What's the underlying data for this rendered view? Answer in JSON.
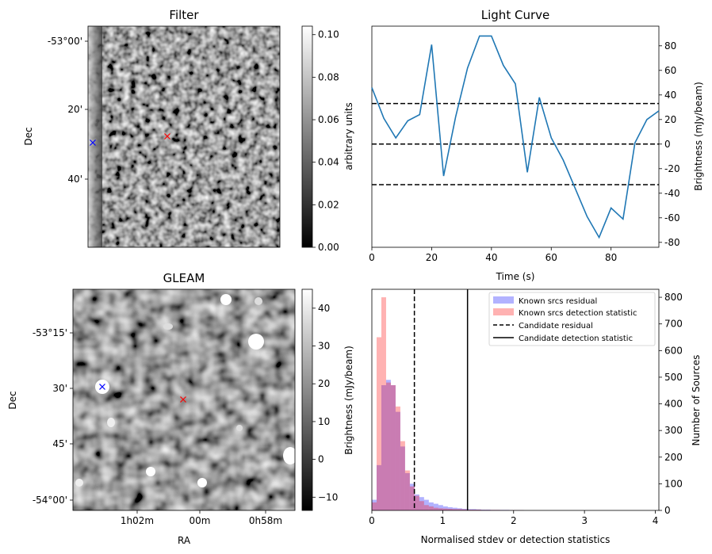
{
  "chart_data": [
    {
      "type": "image",
      "title": "Filter",
      "xlabel": "",
      "ylabel": "Dec",
      "yticks": [
        "-53°00'",
        "20'",
        "40'"
      ],
      "colorbar": {
        "label": "arbitrary units",
        "ticks": [
          "0.00",
          "0.02",
          "0.04",
          "0.06",
          "0.08",
          "0.10"
        ],
        "range": [
          0,
          0.104
        ]
      },
      "markers": [
        {
          "symbol": "x",
          "color": "#0000ff"
        },
        {
          "symbol": "x",
          "color": "#ff0000"
        }
      ]
    },
    {
      "type": "line",
      "title": "Light Curve",
      "xlabel": "Time (s)",
      "ylabel": "Brightness (mJy/beam)",
      "xlim": [
        0,
        96
      ],
      "ylim": [
        -84,
        96
      ],
      "xticks": [
        "0",
        "20",
        "40",
        "60",
        "80"
      ],
      "yticks": [
        "-80",
        "-60",
        "-40",
        "-20",
        "0",
        "20",
        "40",
        "60",
        "80"
      ],
      "x": [
        0,
        4,
        8,
        12,
        16,
        20,
        24,
        28,
        32,
        36,
        40,
        44,
        48,
        52,
        56,
        60,
        64,
        68,
        72,
        76,
        80,
        84,
        88,
        92,
        96
      ],
      "values": [
        46,
        21,
        5,
        19,
        24,
        81,
        -26,
        22,
        62,
        88,
        88,
        64,
        49,
        -23,
        38,
        5,
        -13,
        -36,
        -59,
        -76,
        -52,
        -61,
        1,
        20,
        27
      ],
      "hlines": [
        {
          "y": 33,
          "style": "dashed",
          "color": "#000000"
        },
        {
          "y": 0,
          "style": "dashed",
          "color": "#000000"
        },
        {
          "y": -33,
          "style": "dashed",
          "color": "#000000"
        }
      ],
      "color": "#1f77b4"
    },
    {
      "type": "image",
      "title": "GLEAM",
      "xlabel": "RA",
      "ylabel": "Dec",
      "xticks": [
        "1h02m",
        "00m",
        "0h58m"
      ],
      "yticks": [
        "-53°15'",
        "30'",
        "45'",
        "-54°00'"
      ],
      "colorbar": {
        "label": "Brightness (mJy/beam)",
        "ticks": [
          "−10",
          "0",
          "10",
          "20",
          "30",
          "40"
        ],
        "range": [
          -13.5,
          45
        ]
      },
      "markers": [
        {
          "symbol": "x",
          "color": "#0000ff"
        },
        {
          "symbol": "x",
          "color": "#ff0000"
        }
      ]
    },
    {
      "type": "histogram",
      "xlabel": "Normalised stdev or detection statistics",
      "ylabel": "Number of Sources",
      "xlim": [
        0,
        4.05
      ],
      "ylim": [
        0,
        830
      ],
      "xticks": [
        "0",
        "1",
        "2",
        "3",
        "4"
      ],
      "yticks": [
        "0",
        "100",
        "200",
        "300",
        "400",
        "500",
        "600",
        "700",
        "800"
      ],
      "bin_width": 0.067,
      "series": [
        {
          "name": "Known srcs residual",
          "color": "#0000ff",
          "alpha": 0.3,
          "values": [
            40,
            170,
            470,
            490,
            470,
            370,
            240,
            140,
            100,
            60,
            50,
            40,
            30,
            25,
            20,
            15,
            12,
            10,
            8,
            6,
            5,
            5,
            4,
            3,
            3,
            2,
            2,
            2,
            2,
            1,
            1,
            1
          ]
        },
        {
          "name": "Known srcs detection statistic",
          "color": "#ff0000",
          "alpha": 0.3,
          "values": [
            30,
            650,
            800,
            480,
            470,
            390,
            260,
            150,
            90,
            55,
            35,
            20,
            15,
            10,
            8,
            7,
            6,
            5,
            5,
            4,
            3,
            3,
            3,
            2,
            2,
            2,
            2,
            1,
            1,
            1,
            1,
            1
          ]
        }
      ],
      "vlines": [
        {
          "name": "Candidate residual",
          "x": 0.6,
          "style": "dashed",
          "color": "#000000"
        },
        {
          "name": "Candidate detection statistic",
          "x": 1.35,
          "style": "solid",
          "color": "#000000"
        }
      ],
      "legend": "top-right"
    }
  ]
}
